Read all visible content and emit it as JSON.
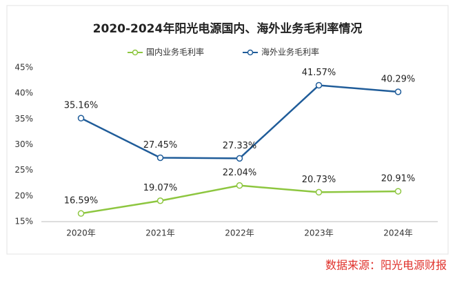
{
  "chart_data": {
    "type": "line",
    "title": "2020-2024年阳光电源国内、海外业务毛利率情况",
    "categories": [
      "2020年",
      "2021年",
      "2022年",
      "2023年",
      "2024年"
    ],
    "series": [
      {
        "name": "国内业务毛利率",
        "color": "#8dc63f",
        "values": [
          16.59,
          19.07,
          22.04,
          20.73,
          20.91
        ],
        "value_labels": [
          "16.59%",
          "19.07%",
          "22.04%",
          "20.73%",
          "20.91%"
        ]
      },
      {
        "name": "海外业务毛利率",
        "color": "#1f5c99",
        "values": [
          35.16,
          27.45,
          27.33,
          41.57,
          40.29
        ],
        "value_labels": [
          "35.16%",
          "27.45%",
          "27.33%",
          "41.57%",
          "40.29%"
        ]
      }
    ],
    "ylim": [
      15,
      45
    ],
    "yticks": [
      {
        "value": 15,
        "label": "15%"
      },
      {
        "value": 20,
        "label": "20%"
      },
      {
        "value": 25,
        "label": "25%"
      },
      {
        "value": 30,
        "label": "30%"
      },
      {
        "value": 35,
        "label": "35%"
      },
      {
        "value": 40,
        "label": "40%"
      },
      {
        "value": 45,
        "label": "45%"
      }
    ],
    "annotation": "数据来源：阳光电源财报"
  }
}
